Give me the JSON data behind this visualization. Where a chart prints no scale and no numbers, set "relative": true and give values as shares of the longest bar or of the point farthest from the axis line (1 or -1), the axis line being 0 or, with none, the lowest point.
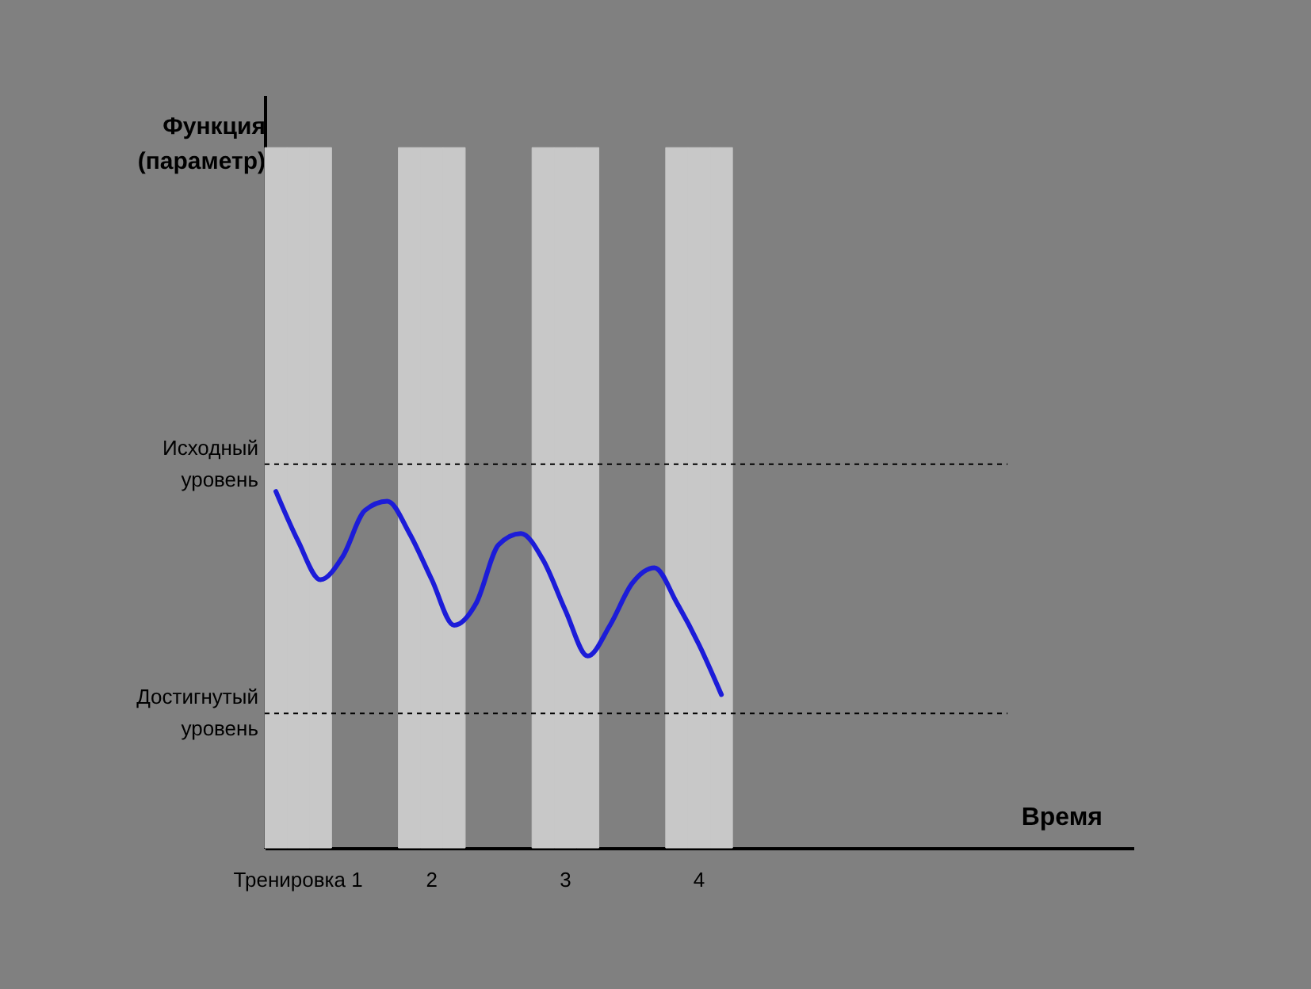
{
  "chart_data": {
    "type": "line",
    "xlabel": "Время",
    "ylabel": "Функция (параметр)",
    "relative": true,
    "categories": [
      null,
      "Тренировка 1",
      null,
      null,
      null,
      null,
      null,
      "2",
      null,
      null,
      null,
      null,
      null,
      "3",
      null,
      null,
      null,
      null,
      null,
      "4",
      null,
      null,
      null,
      null,
      null,
      null,
      null,
      null,
      null,
      null,
      null,
      null,
      null,
      null,
      null,
      null,
      null,
      null,
      null
    ],
    "series": [
      {
        "type": "bar",
        "color": "#c8c8c8",
        "values": [
          1,
          1,
          1,
          null,
          null,
          null,
          1,
          1,
          1,
          null,
          null,
          null,
          1,
          1,
          1,
          null,
          null,
          null,
          1,
          1,
          1,
          null,
          null,
          null,
          null,
          null,
          null,
          null,
          null,
          null,
          null,
          null,
          null,
          null,
          null,
          null,
          null,
          null,
          null
        ]
      },
      {
        "color": "#1c1cd8",
        "values": [
          0.509,
          0.438,
          0.383,
          0.416,
          0.482,
          0.495,
          0.449,
          0.383,
          0.318,
          0.35,
          0.433,
          0.449,
          0.411,
          0.339,
          0.274,
          0.318,
          0.378,
          0.4,
          0.35,
          0.29,
          0.219,
          null,
          null,
          null,
          null,
          null,
          null,
          null,
          null,
          null,
          null,
          null,
          null,
          null,
          null,
          null,
          null,
          null,
          null
        ]
      }
    ],
    "ref_lines": [
      {
        "axis": "y",
        "value": 0.548,
        "label": "Исходный уровень",
        "line_style": "dashed"
      },
      {
        "axis": "y",
        "value": 0.192,
        "label": "Достигнутый уровень",
        "line_style": "dashed"
      }
    ],
    "marker": "none"
  }
}
